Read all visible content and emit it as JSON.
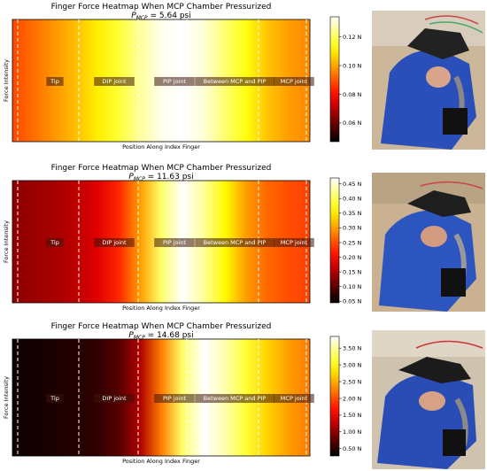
{
  "chart_data": [
    {
      "type": "heatmap",
      "title": "Finger Force Heatmap When MCP Chamber Pressurized",
      "subtitle_symbol": "P",
      "subtitle_subscript": "MCP",
      "subtitle_value": " = 5.64 psi",
      "xlabel": "Position Along Index Finger",
      "ylabel": "Force Intensity",
      "regions": [
        "Tip",
        "DIP joint",
        "PIP joint",
        "Between MCP and PIP",
        "MCP joint"
      ],
      "colorbar": {
        "ticks": [
          "0.06 N",
          "0.08 N",
          "0.10 N",
          "0.12 N"
        ],
        "tick_values": [
          0.06,
          0.08,
          0.1,
          0.12
        ],
        "vmin": 0.047,
        "vmax": 0.134
      },
      "profile": [
        0.47,
        0.53,
        0.59,
        0.65,
        0.72,
        0.8,
        0.9,
        0.98,
        1.0,
        0.96,
        0.86,
        0.76,
        0.66,
        0.6,
        0.57
      ]
    },
    {
      "type": "heatmap",
      "title": "Finger Force Heatmap When MCP Chamber Pressurized",
      "subtitle_symbol": "P",
      "subtitle_subscript": "MCP",
      "subtitle_value": " = 11.63 psi",
      "xlabel": "Position Along Index Finger",
      "ylabel": "Force Intensity",
      "regions": [
        "Tip",
        "DIP joint",
        "PIP joint",
        "Between MCP and PIP",
        "MCP joint"
      ],
      "colorbar": {
        "ticks": [
          "0.05 N",
          "0.10 N",
          "0.15 N",
          "0.20 N",
          "0.25 N",
          "0.30 N",
          "0.35 N",
          "0.40 N",
          "0.45 N"
        ],
        "tick_values": [
          0.05,
          0.1,
          0.15,
          0.2,
          0.25,
          0.3,
          0.35,
          0.4,
          0.45
        ],
        "vmin": 0.045,
        "vmax": 0.47
      },
      "profile": [
        0.2,
        0.22,
        0.24,
        0.27,
        0.32,
        0.42,
        0.6,
        0.85,
        1.0,
        0.9,
        0.74,
        0.6,
        0.52,
        0.48,
        0.46
      ]
    },
    {
      "type": "heatmap",
      "title": "Finger Force Heatmap When MCP Chamber Pressurized",
      "subtitle_symbol": "P",
      "subtitle_subscript": "MCP",
      "subtitle_value": " = 14.68 psi",
      "xlabel": "Position Along Index Finger",
      "ylabel": "Force Intensity",
      "regions": [
        "Tip",
        "DIP joint",
        "PIP joint",
        "Between MCP and PIP",
        "MCP joint"
      ],
      "colorbar": {
        "ticks": [
          "0.50 N",
          "1.00 N",
          "1.50 N",
          "2.00 N",
          "2.50 N",
          "3.00 N",
          "3.50 N"
        ],
        "tick_values": [
          0.5,
          1.0,
          1.5,
          2.0,
          2.5,
          3.0,
          3.5
        ],
        "vmin": 0.28,
        "vmax": 3.85
      },
      "profile": [
        0.02,
        0.03,
        0.04,
        0.05,
        0.07,
        0.12,
        0.25,
        0.55,
        0.85,
        1.0,
        0.92,
        0.8,
        0.68,
        0.6,
        0.55
      ]
    }
  ]
}
